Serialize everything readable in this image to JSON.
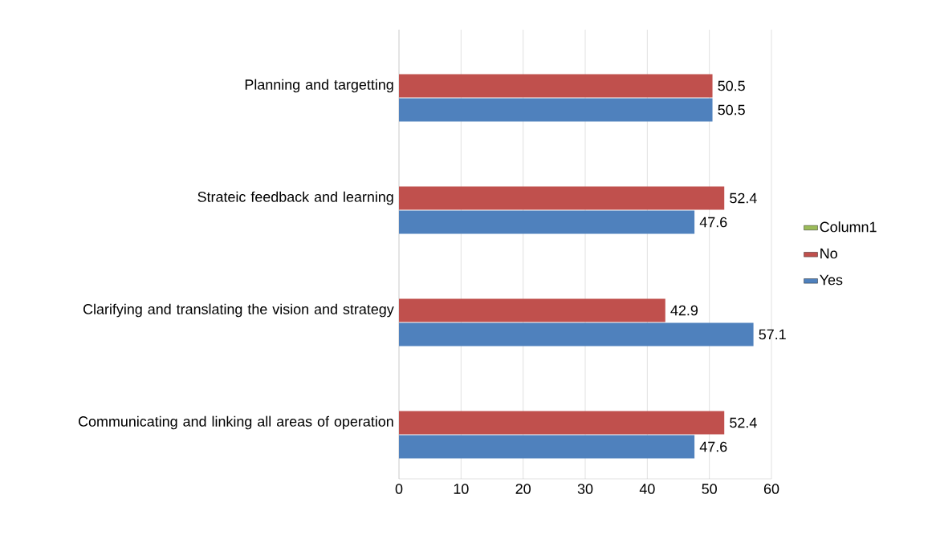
{
  "chart_data": {
    "type": "bar",
    "orientation": "horizontal",
    "categories": [
      "Planning and targetting",
      "Strateic feedback and learning",
      "Clarifying and translating the vision and strategy",
      "Communicating and linking all areas of operation"
    ],
    "series": [
      {
        "name": "Column1",
        "color": "#9bbb59",
        "values": [
          null,
          null,
          null,
          null
        ]
      },
      {
        "name": "No",
        "color": "#c0504d",
        "values": [
          50.5,
          52.4,
          42.9,
          52.4
        ]
      },
      {
        "name": "Yes",
        "color": "#4f81bd",
        "values": [
          50.5,
          47.6,
          57.1,
          47.6
        ]
      }
    ],
    "xlim": [
      0,
      60
    ],
    "xticks": [
      0,
      10,
      20,
      30,
      40,
      50,
      60
    ],
    "grid": "x",
    "legend": "right",
    "data_labels": true
  }
}
